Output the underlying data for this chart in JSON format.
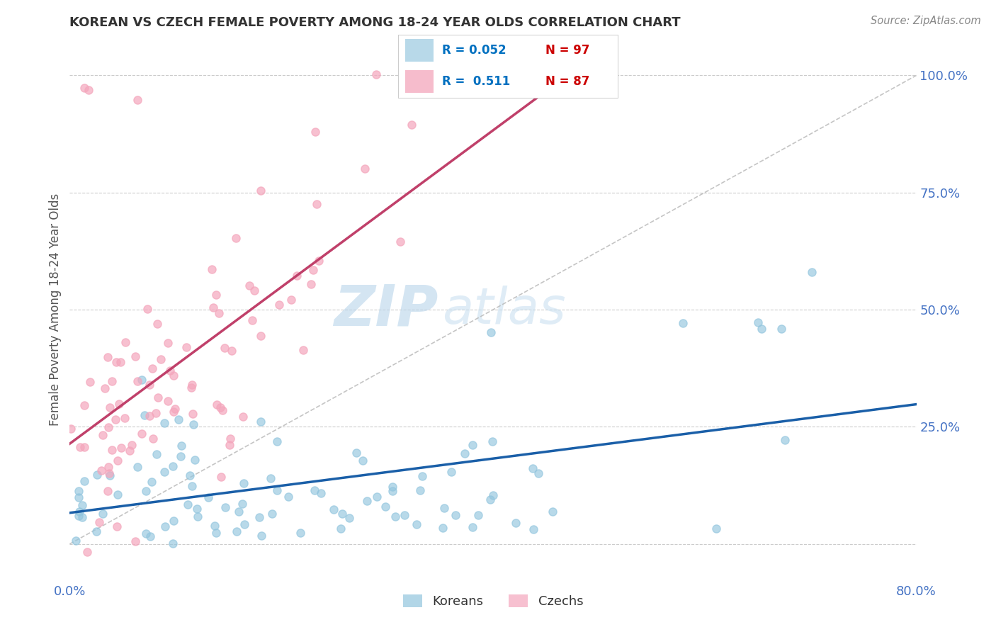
{
  "title": "KOREAN VS CZECH FEMALE POVERTY AMONG 18-24 YEAR OLDS CORRELATION CHART",
  "source": "Source: ZipAtlas.com",
  "ylabel": "Female Poverty Among 18-24 Year Olds",
  "xlim": [
    0.0,
    0.8
  ],
  "ylim": [
    -0.08,
    1.08
  ],
  "xticks": [
    0.0,
    0.2,
    0.4,
    0.6,
    0.8
  ],
  "xticklabels": [
    "0.0%",
    "",
    "",
    "",
    "80.0%"
  ],
  "yticks": [
    0.0,
    0.25,
    0.5,
    0.75,
    1.0
  ],
  "yticklabels": [
    "",
    "25.0%",
    "50.0%",
    "75.0%",
    "100.0%"
  ],
  "korean_color": "#92c5de",
  "czech_color": "#f4a6bc",
  "korean_R": 0.052,
  "korean_N": 97,
  "czech_R": 0.511,
  "czech_N": 87,
  "watermark_zip": "ZIP",
  "watermark_atlas": "atlas",
  "background_color": "#ffffff",
  "grid_color": "#cccccc",
  "title_color": "#333333",
  "axis_color": "#4472c4",
  "legend_R_color": "#0070c0",
  "legend_N_color": "#cc0000",
  "korean_line_color": "#1a5fa8",
  "czech_line_color": "#c0406a",
  "diag_line_color": "#bbbbbb"
}
